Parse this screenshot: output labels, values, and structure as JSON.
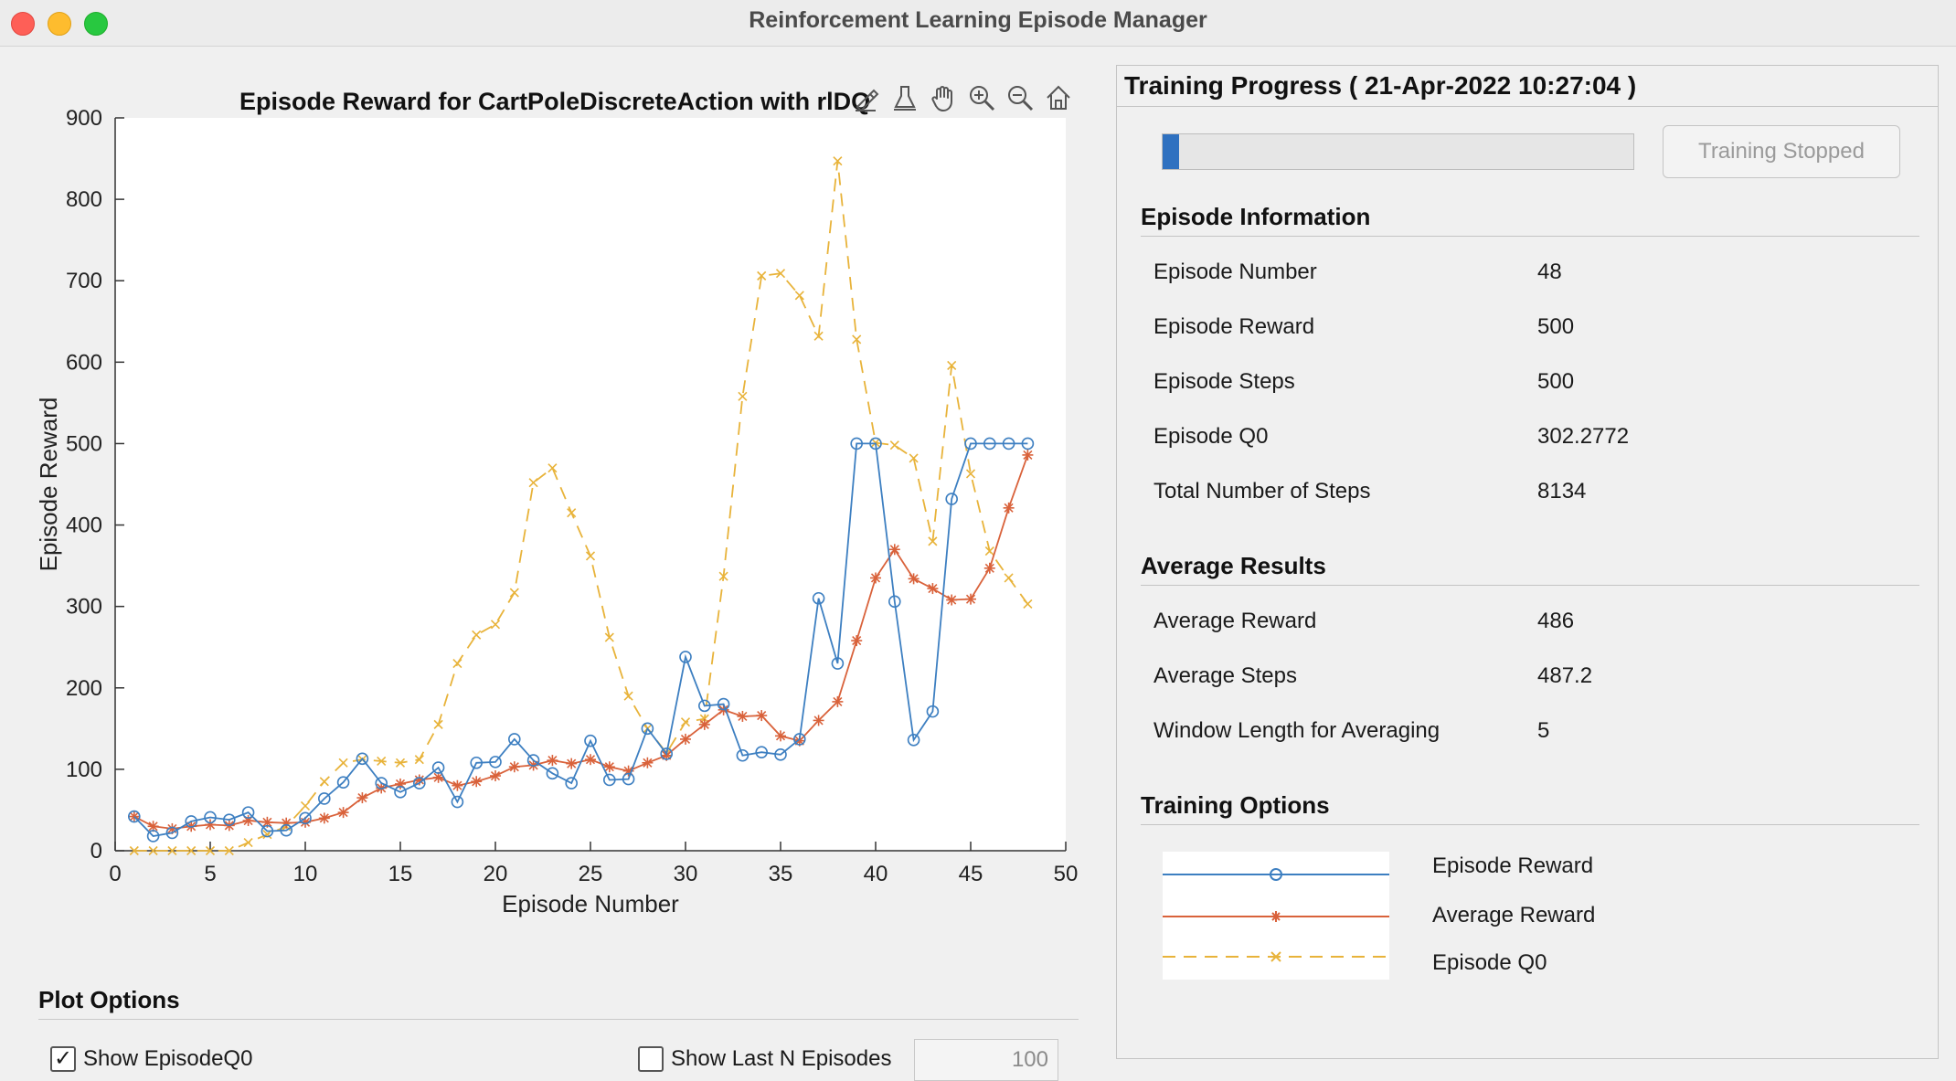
{
  "window": {
    "title": "Reinforcement Learning Episode Manager"
  },
  "plot": {
    "title": "Episode Reward for CartPoleDiscreteAction with rlDQ",
    "toolbar": [
      "brush-tool-icon",
      "data-tips-icon",
      "pan-icon",
      "zoom-in-icon",
      "zoom-out-icon",
      "home-icon"
    ]
  },
  "chart_data": {
    "type": "line",
    "xlabel": "Episode Number",
    "ylabel": "Episode Reward",
    "xlim": [
      0,
      50
    ],
    "ylim": [
      0,
      900
    ],
    "xticks": [
      "0",
      "5",
      "10",
      "15",
      "20",
      "25",
      "30",
      "35",
      "40",
      "45",
      "50"
    ],
    "yticks": [
      "0",
      "100",
      "200",
      "300",
      "400",
      "500",
      "600",
      "700",
      "800",
      "900"
    ],
    "grid": false,
    "x": [
      1,
      2,
      3,
      4,
      5,
      6,
      7,
      8,
      9,
      10,
      11,
      12,
      13,
      14,
      15,
      16,
      17,
      18,
      19,
      20,
      21,
      22,
      23,
      24,
      25,
      26,
      27,
      28,
      29,
      30,
      31,
      32,
      33,
      34,
      35,
      36,
      37,
      38,
      39,
      40,
      41,
      42,
      43,
      44,
      45,
      46,
      47,
      48
    ],
    "series": [
      {
        "name": "Episode Reward",
        "color": "#3d7fc1",
        "marker": "circle",
        "values": [
          42,
          18,
          22,
          36,
          41,
          38,
          47,
          24,
          25,
          40,
          64,
          84,
          113,
          83,
          72,
          83,
          102,
          60,
          108,
          109,
          137,
          111,
          95,
          83,
          135,
          87,
          88,
          150,
          119,
          238,
          178,
          180,
          117,
          121,
          118,
          137,
          310,
          230,
          500,
          500,
          306,
          136,
          171,
          432,
          500,
          500,
          500,
          500
        ]
      },
      {
        "name": "Average Reward",
        "color": "#d9623b",
        "marker": "asterisk",
        "values": [
          42,
          30,
          27,
          30,
          32,
          31,
          37,
          35,
          34,
          35,
          40,
          47,
          65,
          77,
          82,
          87,
          90,
          80,
          85,
          92,
          103,
          105,
          111,
          107,
          112,
          103,
          98,
          108,
          117,
          137,
          155,
          173,
          165,
          166,
          141,
          135,
          160,
          183,
          258,
          335,
          370,
          334,
          322,
          308,
          309,
          347,
          421,
          486
        ]
      },
      {
        "name": "Episode Q0",
        "color": "#e8b33a",
        "marker": "x",
        "dashed": true,
        "values": [
          0,
          0,
          0,
          0,
          0,
          0,
          10,
          20,
          30,
          55,
          85,
          108,
          112,
          110,
          108,
          112,
          155,
          230,
          265,
          278,
          317,
          452,
          470,
          415,
          362,
          262,
          190,
          150,
          120,
          158,
          162,
          337,
          558,
          706,
          709,
          682,
          632,
          847,
          628,
          501,
          498,
          482,
          380,
          596,
          463,
          368,
          335,
          303
        ]
      }
    ]
  },
  "plot_options": {
    "title": "Plot Options",
    "show_q0_label": "Show EpisodeQ0",
    "show_q0_checked": true,
    "show_last_n_label": "Show Last N Episodes",
    "show_last_n_checked": false,
    "last_n_value": "100"
  },
  "training_progress": {
    "title": "Training Progress ( 21-Apr-2022 10:27:04 )",
    "progress_fraction": 0.035,
    "button_label": "Training Stopped"
  },
  "episode_information": {
    "title": "Episode Information",
    "rows": [
      {
        "label": "Episode Number",
        "value": "48"
      },
      {
        "label": "Episode Reward",
        "value": "500"
      },
      {
        "label": "Episode Steps",
        "value": "500"
      },
      {
        "label": "Episode Q0",
        "value": "302.2772"
      },
      {
        "label": "Total Number of Steps",
        "value": "8134"
      }
    ]
  },
  "average_results": {
    "title": "Average Results",
    "rows": [
      {
        "label": "Average Reward",
        "value": "486"
      },
      {
        "label": "Average Steps",
        "value": "487.2"
      },
      {
        "label": "Window Length for Averaging",
        "value": "5"
      }
    ]
  },
  "training_options": {
    "title": "Training Options",
    "legend": [
      "Episode Reward",
      "Average Reward",
      "Episode Q0"
    ]
  }
}
